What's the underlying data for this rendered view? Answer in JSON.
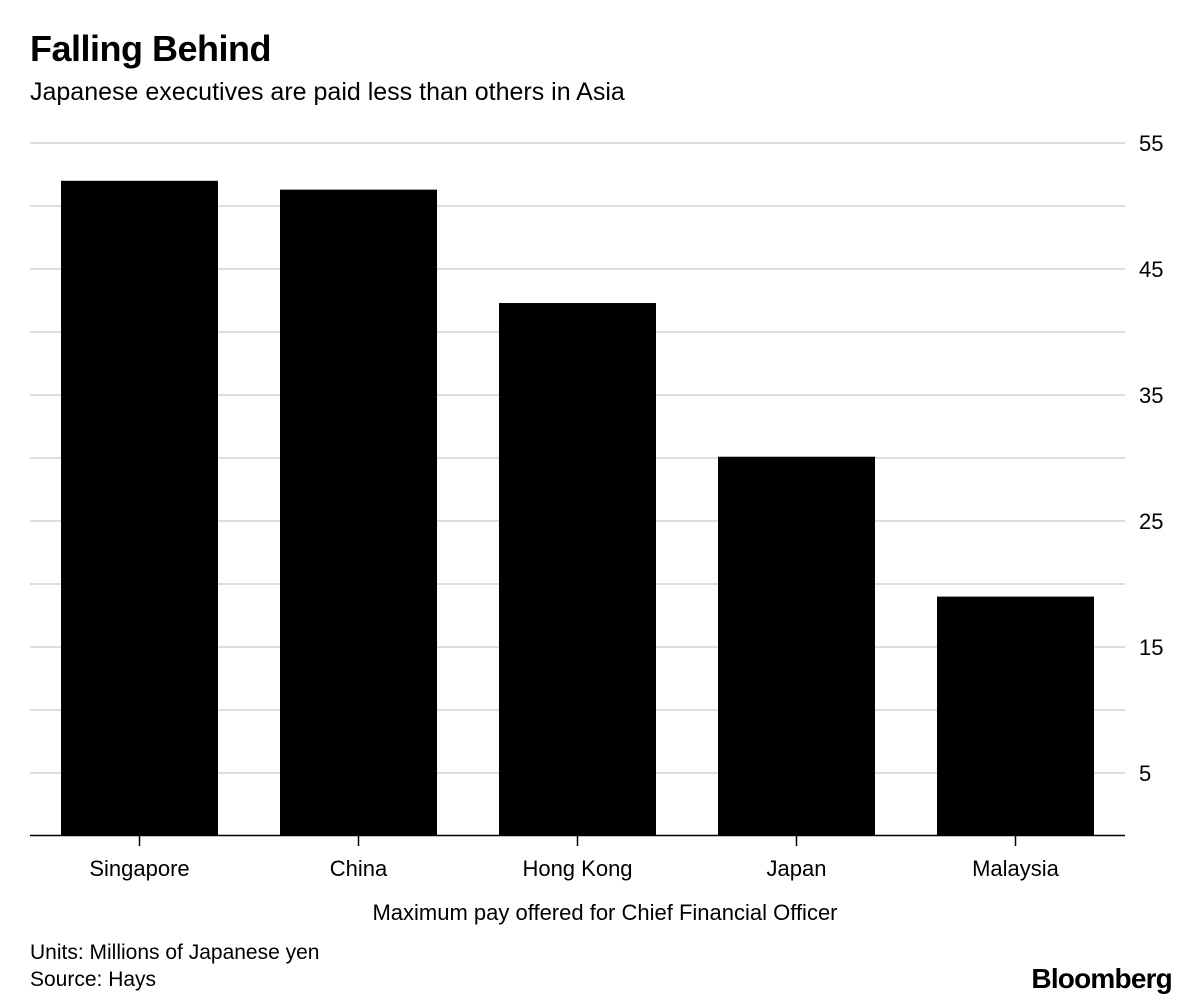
{
  "header": {
    "title": "Falling Behind",
    "subtitle": "Japanese executives are paid less than others in Asia"
  },
  "footer": {
    "units": "Units: Millions of Japanese yen",
    "source": "Source: Hays",
    "brand": "Bloomberg"
  },
  "colors": {
    "bar": "#000000",
    "grid": "#dedede",
    "axis": "#000000"
  },
  "chart_data": {
    "type": "bar",
    "title": "Falling Behind",
    "subtitle": "Japanese executives are paid less than others in Asia",
    "categories": [
      "Singapore",
      "China",
      "Hong Kong",
      "Japan",
      "Malaysia"
    ],
    "values": [
      52.0,
      51.3,
      42.3,
      30.1,
      19.0
    ],
    "xlabel": "Maximum pay offered for Chief Financial Officer",
    "ylabel": "",
    "ylim": [
      0,
      55
    ],
    "yticks": [
      5,
      15,
      25,
      35,
      45,
      55
    ],
    "gridlines": [
      5,
      10,
      15,
      20,
      25,
      30,
      35,
      40,
      45,
      50,
      55
    ],
    "grid": true,
    "y_axis_position": "right",
    "legend": "none"
  }
}
